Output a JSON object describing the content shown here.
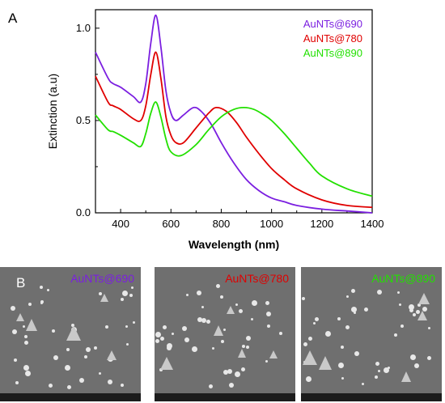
{
  "panel_a": "A",
  "panel_b": "B",
  "chart_data": {
    "type": "line",
    "xlabel": "Wavelength (nm)",
    "ylabel": "Extinction (a.u)",
    "xlim": [
      300,
      1400
    ],
    "ylim": [
      0,
      1.1
    ],
    "xticks": [
      400,
      600,
      800,
      1000,
      1200,
      1400
    ],
    "xtick_labels": [
      "400",
      "600",
      "800",
      "1000",
      "1200",
      "1400"
    ],
    "yticks": [
      0,
      0.5,
      1.0
    ],
    "ytick_labels": [
      "0.0",
      "0.5",
      "1.0"
    ],
    "legend_position": "top-right",
    "series": [
      {
        "name": "AuNTs@690",
        "color": "#7b1fe0",
        "x": [
          300,
          350,
          370,
          400,
          450,
          480,
          500,
          520,
          540,
          560,
          580,
          600,
          620,
          650,
          690,
          720,
          760,
          800,
          850,
          900,
          950,
          1000,
          1050,
          1100,
          1200,
          1300,
          1400
        ],
        "y": [
          0.87,
          0.73,
          0.7,
          0.68,
          0.63,
          0.6,
          0.7,
          0.92,
          1.07,
          0.9,
          0.66,
          0.54,
          0.5,
          0.53,
          0.57,
          0.55,
          0.48,
          0.38,
          0.27,
          0.18,
          0.12,
          0.08,
          0.06,
          0.04,
          0.02,
          0.01,
          0.0
        ]
      },
      {
        "name": "AuNTs@780",
        "color": "#e00000",
        "x": [
          300,
          350,
          370,
          400,
          450,
          480,
          500,
          520,
          540,
          560,
          580,
          600,
          620,
          650,
          700,
          750,
          780,
          820,
          860,
          900,
          950,
          1000,
          1050,
          1100,
          1200,
          1300,
          1400
        ],
        "y": [
          0.74,
          0.6,
          0.58,
          0.56,
          0.51,
          0.5,
          0.58,
          0.75,
          0.87,
          0.73,
          0.52,
          0.42,
          0.38,
          0.38,
          0.46,
          0.54,
          0.57,
          0.55,
          0.49,
          0.41,
          0.32,
          0.24,
          0.18,
          0.13,
          0.07,
          0.04,
          0.03
        ]
      },
      {
        "name": "AuNTs@890",
        "color": "#22e000",
        "x": [
          300,
          350,
          370,
          400,
          450,
          480,
          500,
          520,
          540,
          560,
          580,
          600,
          640,
          700,
          750,
          800,
          850,
          890,
          930,
          970,
          1000,
          1050,
          1100,
          1150,
          1200,
          1300,
          1400
        ],
        "y": [
          0.53,
          0.45,
          0.44,
          0.42,
          0.38,
          0.36,
          0.43,
          0.54,
          0.6,
          0.52,
          0.4,
          0.33,
          0.31,
          0.37,
          0.45,
          0.52,
          0.56,
          0.57,
          0.56,
          0.53,
          0.5,
          0.43,
          0.35,
          0.27,
          0.2,
          0.13,
          0.09
        ]
      }
    ]
  },
  "sem_images": [
    {
      "label": "AuNTs@690",
      "color": "#7b1fe0"
    },
    {
      "label": "AuNTs@780",
      "color": "#e00000"
    },
    {
      "label": "AuNTs@890",
      "color": "#22e000"
    }
  ]
}
